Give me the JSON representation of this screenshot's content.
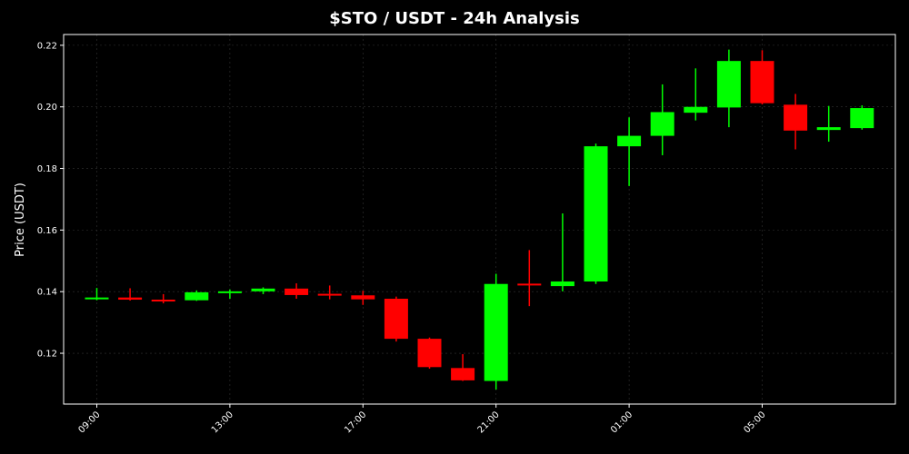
{
  "chart_data": {
    "type": "candlestick",
    "title": "$STO / USDT - 24h Analysis",
    "xlabel": "",
    "ylabel": "Price (USDT)",
    "ylim": [
      0.1035,
      0.2235
    ],
    "grid": true,
    "background": "#000000",
    "up_color": "#00ff00",
    "down_color": "#ff0000",
    "y_ticks": [
      "0.12",
      "0.14",
      "0.16",
      "0.18",
      "0.20",
      "0.22"
    ],
    "x_ticks": [
      "09:00",
      "13:00",
      "17:00",
      "21:00",
      "01:00",
      "05:00"
    ],
    "candles": [
      {
        "time": "09:00",
        "open": 0.1378,
        "high": 0.1412,
        "low": 0.1372,
        "close": 0.1381
      },
      {
        "time": "10:00",
        "open": 0.1381,
        "high": 0.1411,
        "low": 0.1371,
        "close": 0.1374
      },
      {
        "time": "11:00",
        "open": 0.1374,
        "high": 0.1392,
        "low": 0.1362,
        "close": 0.1372
      },
      {
        "time": "12:00",
        "open": 0.1372,
        "high": 0.1404,
        "low": 0.137,
        "close": 0.1398
      },
      {
        "time": "13:00",
        "open": 0.1397,
        "high": 0.1407,
        "low": 0.1377,
        "close": 0.1401
      },
      {
        "time": "14:00",
        "open": 0.1401,
        "high": 0.1414,
        "low": 0.1392,
        "close": 0.141
      },
      {
        "time": "15:00",
        "open": 0.141,
        "high": 0.1427,
        "low": 0.1377,
        "close": 0.1389
      },
      {
        "time": "16:00",
        "open": 0.1393,
        "high": 0.142,
        "low": 0.1375,
        "close": 0.1388
      },
      {
        "time": "17:00",
        "open": 0.1388,
        "high": 0.1403,
        "low": 0.1357,
        "close": 0.1375
      },
      {
        "time": "18:00",
        "open": 0.1377,
        "high": 0.1384,
        "low": 0.1238,
        "close": 0.1247
      },
      {
        "time": "19:00",
        "open": 0.1247,
        "high": 0.1251,
        "low": 0.115,
        "close": 0.1155
      },
      {
        "time": "20:00",
        "open": 0.1152,
        "high": 0.1197,
        "low": 0.111,
        "close": 0.1112
      },
      {
        "time": "21:00",
        "open": 0.111,
        "high": 0.1458,
        "low": 0.1082,
        "close": 0.1425
      },
      {
        "time": "22:00",
        "open": 0.1426,
        "high": 0.1535,
        "low": 0.1353,
        "close": 0.1421
      },
      {
        "time": "23:00",
        "open": 0.1418,
        "high": 0.1654,
        "low": 0.1401,
        "close": 0.1433
      },
      {
        "time": "00:00",
        "open": 0.1433,
        "high": 0.1881,
        "low": 0.1425,
        "close": 0.1872
      },
      {
        "time": "01:00",
        "open": 0.1872,
        "high": 0.1966,
        "low": 0.1743,
        "close": 0.1906
      },
      {
        "time": "02:00",
        "open": 0.1906,
        "high": 0.2073,
        "low": 0.1843,
        "close": 0.1983
      },
      {
        "time": "03:00",
        "open": 0.1981,
        "high": 0.2125,
        "low": 0.1956,
        "close": 0.2
      },
      {
        "time": "04:00",
        "open": 0.1998,
        "high": 0.2186,
        "low": 0.1934,
        "close": 0.2149
      },
      {
        "time": "05:00",
        "open": 0.2149,
        "high": 0.2184,
        "low": 0.2008,
        "close": 0.2012
      },
      {
        "time": "06:00",
        "open": 0.2007,
        "high": 0.2042,
        "low": 0.1862,
        "close": 0.1923
      },
      {
        "time": "07:00",
        "open": 0.1925,
        "high": 0.2003,
        "low": 0.1887,
        "close": 0.1934
      },
      {
        "time": "08:00",
        "open": 0.1931,
        "high": 0.2005,
        "low": 0.1926,
        "close": 0.1996
      }
    ]
  }
}
